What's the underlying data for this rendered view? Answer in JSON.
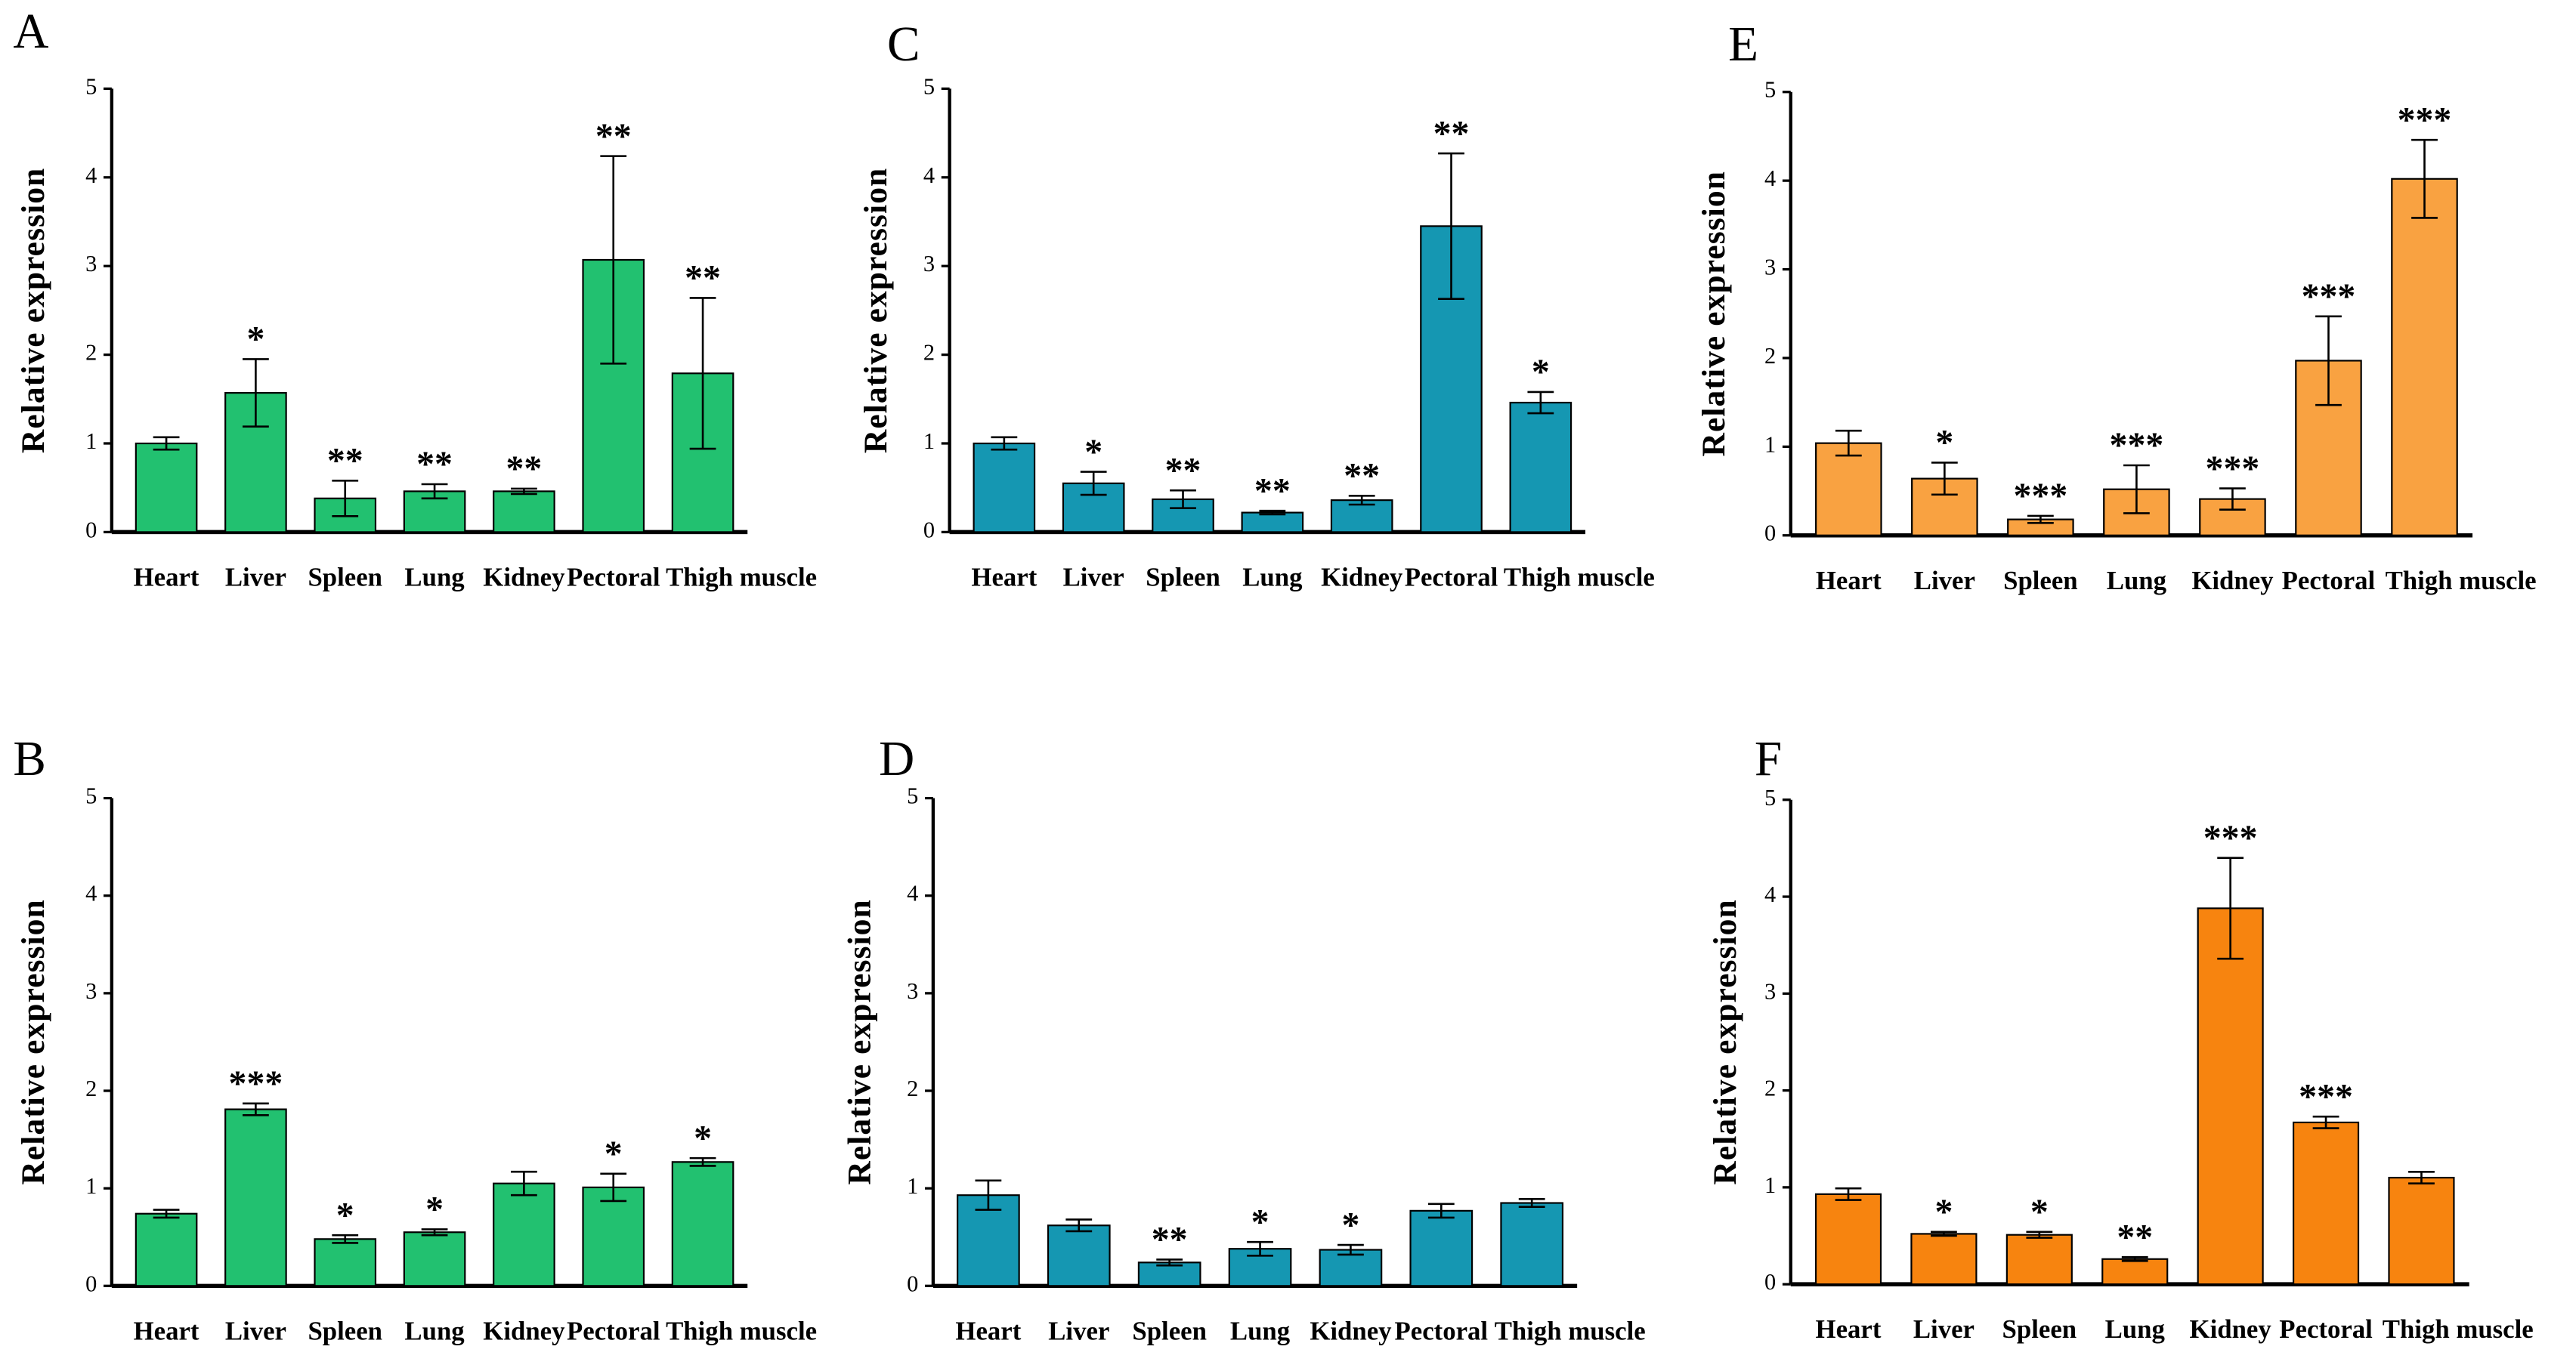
{
  "chart_data": [
    {
      "type": "bar",
      "label": "A",
      "ylabel": "Relative expression",
      "color": "#22c170",
      "categories": [
        "Heart",
        "Liver",
        "Spleen",
        "Lung",
        "Kidney",
        "Pectoral",
        "Thigh muscle"
      ],
      "values": [
        1.0,
        1.57,
        0.38,
        0.46,
        0.46,
        3.07,
        1.79
      ],
      "errors": [
        0.07,
        0.38,
        0.2,
        0.08,
        0.03,
        1.17,
        0.85
      ],
      "annotations": [
        null,
        "*",
        "**",
        "**",
        "**",
        "**",
        "**"
      ],
      "ylim": [
        0,
        5
      ],
      "yticks": [
        0,
        1,
        2,
        3,
        4,
        5
      ]
    },
    {
      "type": "bar",
      "label": "B",
      "ylabel": "Relative expression",
      "color": "#22c170",
      "categories": [
        "Heart",
        "Liver",
        "Spleen",
        "Lung",
        "Kidney",
        "Pectoral",
        "Thigh muscle"
      ],
      "values": [
        0.74,
        1.81,
        0.48,
        0.55,
        1.05,
        1.01,
        1.27
      ],
      "errors": [
        0.04,
        0.06,
        0.04,
        0.03,
        0.12,
        0.14,
        0.04
      ],
      "annotations": [
        null,
        "***",
        "*",
        "*",
        null,
        "*",
        "*"
      ],
      "ylim": [
        0,
        5
      ],
      "yticks": [
        0,
        1,
        2,
        3,
        4,
        5
      ]
    },
    {
      "type": "bar",
      "label": "C",
      "ylabel": "Relative expression",
      "color": "#1597b2",
      "categories": [
        "Heart",
        "Liver",
        "Spleen",
        "Lung",
        "Kidney",
        "Pectoral",
        "Thigh muscle"
      ],
      "values": [
        1.0,
        0.55,
        0.37,
        0.22,
        0.36,
        3.45,
        1.46
      ],
      "errors": [
        0.07,
        0.13,
        0.1,
        0.02,
        0.05,
        0.82,
        0.12
      ],
      "annotations": [
        null,
        "*",
        "**",
        "**",
        "**",
        "**",
        "*"
      ],
      "ylim": [
        0,
        5
      ],
      "yticks": [
        0,
        1,
        2,
        3,
        4,
        5
      ]
    },
    {
      "type": "bar",
      "label": "D",
      "ylabel": "Relative expression",
      "color": "#1597b2",
      "categories": [
        "Heart",
        "Liver",
        "Spleen",
        "Lung",
        "Kidney",
        "Pectoral",
        "Thigh muscle"
      ],
      "values": [
        0.93,
        0.62,
        0.24,
        0.38,
        0.37,
        0.77,
        0.85
      ],
      "errors": [
        0.15,
        0.06,
        0.03,
        0.07,
        0.05,
        0.07,
        0.04
      ],
      "annotations": [
        null,
        null,
        "**",
        "*",
        "*",
        null,
        null
      ],
      "ylim": [
        0,
        5
      ],
      "yticks": [
        0,
        1,
        2,
        3,
        4,
        5
      ]
    },
    {
      "type": "bar",
      "label": "E",
      "ylabel": "Relative expression",
      "color": "#f9a241",
      "categories": [
        "Heart",
        "Liver",
        "Spleen",
        "Lung",
        "Kidney",
        "Pectoral",
        "Thigh muscle"
      ],
      "values": [
        1.04,
        0.64,
        0.18,
        0.52,
        0.41,
        1.97,
        4.02
      ],
      "errors": [
        0.14,
        0.18,
        0.04,
        0.27,
        0.12,
        0.5,
        0.44
      ],
      "annotations": [
        null,
        "*",
        "***",
        "***",
        "***",
        "***",
        "***"
      ],
      "ylim": [
        0,
        5
      ],
      "yticks": [
        0,
        1,
        2,
        3,
        4,
        5
      ]
    },
    {
      "type": "bar",
      "label": "F",
      "ylabel": "Relative expression",
      "color": "#f7840f",
      "categories": [
        "Heart",
        "Liver",
        "Spleen",
        "Lung",
        "Kidney",
        "Pectoral",
        "Thigh muscle"
      ],
      "values": [
        0.93,
        0.52,
        0.51,
        0.26,
        3.88,
        1.67,
        1.1
      ],
      "errors": [
        0.06,
        0.02,
        0.03,
        0.02,
        0.52,
        0.06,
        0.06
      ],
      "annotations": [
        null,
        "*",
        "*",
        "**",
        "***",
        "***",
        null
      ],
      "ylim": [
        0,
        5
      ],
      "yticks": [
        0,
        1,
        2,
        3,
        4,
        5
      ]
    }
  ]
}
